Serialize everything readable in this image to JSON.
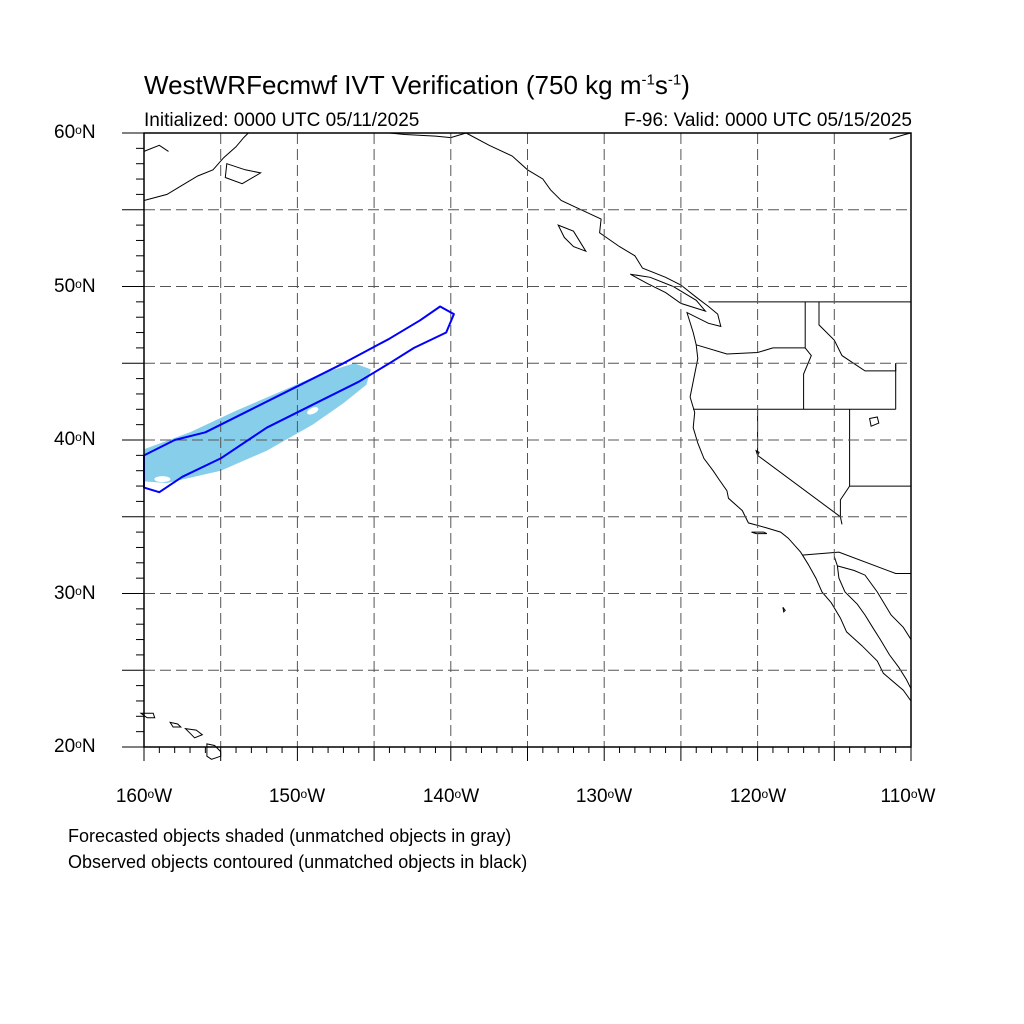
{
  "title": {
    "prefix": "WestWRFecmwf IVT Verification (750 kg m",
    "exp1": "-1",
    "mid": "s",
    "exp2": "-1",
    "suffix": ")"
  },
  "initialized": "Initialized: 0000 UTC 05/11/2025",
  "valid": "F-96: Valid: 0000 UTC 05/15/2025",
  "lat_axis": {
    "ticks": [
      {
        "deg": "60",
        "hemi": "N",
        "value": 60
      },
      {
        "deg": "50",
        "hemi": "N",
        "value": 50
      },
      {
        "deg": "40",
        "hemi": "N",
        "value": 40
      },
      {
        "deg": "30",
        "hemi": "N",
        "value": 30
      },
      {
        "deg": "20",
        "hemi": "N",
        "value": 20
      }
    ]
  },
  "lon_axis": {
    "ticks": [
      {
        "deg": "160",
        "hemi": "W",
        "value": -160
      },
      {
        "deg": "150",
        "hemi": "W",
        "value": -150
      },
      {
        "deg": "140",
        "hemi": "W",
        "value": -140
      },
      {
        "deg": "130",
        "hemi": "W",
        "value": -130
      },
      {
        "deg": "120",
        "hemi": "W",
        "value": -120
      },
      {
        "deg": "110",
        "hemi": "W",
        "value": -110
      }
    ]
  },
  "map": {
    "lon_range": [
      -160,
      -110
    ],
    "lat_range": [
      20,
      60
    ],
    "gridline_every_deg": 5,
    "forecast_object_color": "#87ceeb",
    "observed_contour_color": "#0000ff",
    "coastline_color": "#000000",
    "forecast_object": [
      [
        -160,
        37.3
      ],
      [
        -158.5,
        37.2
      ],
      [
        -155,
        38.0
      ],
      [
        -152,
        39.3
      ],
      [
        -149,
        41.0
      ],
      [
        -147,
        42.4
      ],
      [
        -145.5,
        43.6
      ],
      [
        -145.2,
        44.6
      ],
      [
        -146.3,
        45.0
      ],
      [
        -148.5,
        44.3
      ],
      [
        -151,
        43.2
      ],
      [
        -154,
        41.9
      ],
      [
        -157,
        40.5
      ],
      [
        -160,
        39.4
      ]
    ],
    "observed_object": [
      [
        -160,
        39.0
      ],
      [
        -158,
        40.0
      ],
      [
        -156,
        40.5
      ],
      [
        -153,
        42.0
      ],
      [
        -150,
        43.5
      ],
      [
        -147,
        45.0
      ],
      [
        -144,
        46.6
      ],
      [
        -142,
        47.8
      ],
      [
        -140.7,
        48.7
      ],
      [
        -139.8,
        48.2
      ],
      [
        -140.3,
        47.0
      ],
      [
        -142.4,
        46.0
      ],
      [
        -144,
        45.0
      ],
      [
        -146,
        43.8
      ],
      [
        -149,
        42.3
      ],
      [
        -152,
        40.8
      ],
      [
        -155,
        38.8
      ],
      [
        -157.5,
        37.6
      ],
      [
        -159,
        36.6
      ],
      [
        -160,
        36.9
      ]
    ]
  },
  "captions": [
    "Forecasted objects shaded (unmatched objects in gray)",
    "Observed objects contoured (unmatched objects in black)"
  ]
}
